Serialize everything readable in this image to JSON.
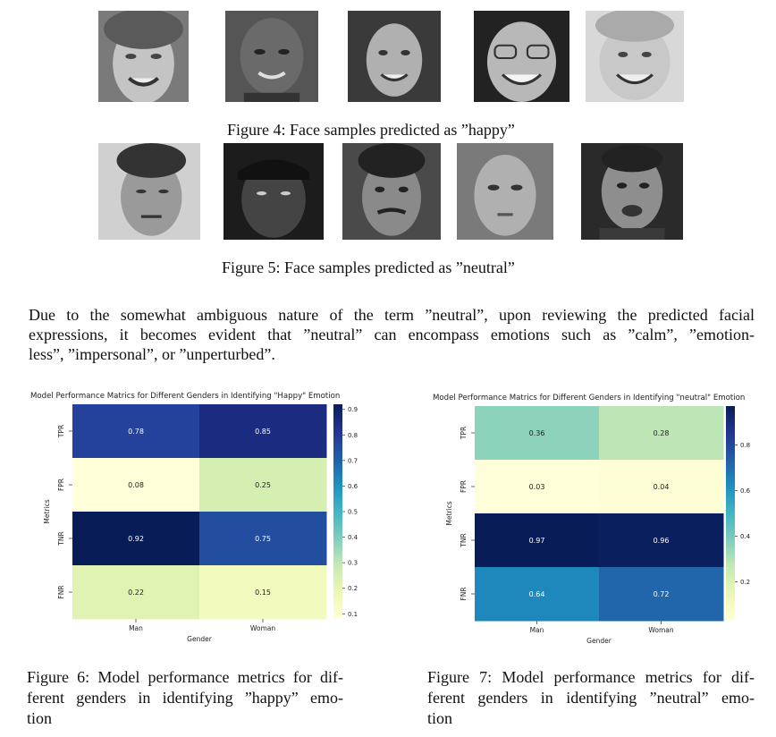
{
  "figure4": {
    "caption": "Figure 4: Face samples predicted as ”happy”",
    "faces": [
      "face-1",
      "face-2",
      "face-3",
      "face-4",
      "face-5"
    ]
  },
  "figure5": {
    "caption": "Figure 5: Face samples predicted as ”neutral”",
    "faces": [
      "face-1",
      "face-2",
      "face-3",
      "face-4",
      "face-5"
    ]
  },
  "paragraph": {
    "line1": "Due to the somewhat ambiguous nature of the term ”neutral”, upon reviewing the predicted facial",
    "line2": "expressions, it becomes evident that ”neutral” can encompass emotions such as ”calm”, ”emotion-",
    "line3": "less”, ”impersonal”, or ”unperturbed”."
  },
  "figure6": {
    "caption_line1": "Figure 6: Model performance metrics for dif-",
    "caption_line2": "ferent genders in identifying ”happy” emo-",
    "caption_line3": "tion"
  },
  "figure7": {
    "caption_line1": "Figure 7: Model performance metrics for dif-",
    "caption_line2": "ferent genders in identifying ”neutral” emo-",
    "caption_line3": "tion"
  },
  "chart_data": [
    {
      "type": "heatmap",
      "title": "Model Performance Matrics for Different Genders in Identifying \"Happy\" Emotion",
      "xlabel": "Gender",
      "ylabel": "Metrics",
      "x_categories": [
        "Man",
        "Woman"
      ],
      "y_categories": [
        "TPR",
        "FPR",
        "TNR",
        "FNR"
      ],
      "values": [
        [
          0.78,
          0.85
        ],
        [
          0.08,
          0.25
        ],
        [
          0.92,
          0.75
        ],
        [
          0.22,
          0.15
        ]
      ],
      "colormap": "YlGnBu",
      "colorbar_range": [
        0.08,
        0.92
      ],
      "colorbar_ticks": [
        0.1,
        0.2,
        0.3,
        0.4,
        0.5,
        0.6,
        0.7,
        0.8,
        0.9
      ]
    },
    {
      "type": "heatmap",
      "title": "Model Performance Matrics for Different Genders in Identifying \"neutral\" Emotion",
      "xlabel": "Gender",
      "ylabel": "Metrics",
      "x_categories": [
        "Man",
        "Woman"
      ],
      "y_categories": [
        "TPR",
        "FPR",
        "TNR",
        "FNR"
      ],
      "values": [
        [
          0.36,
          0.28
        ],
        [
          0.03,
          0.04
        ],
        [
          0.97,
          0.96
        ],
        [
          0.64,
          0.72
        ]
      ],
      "colormap": "YlGnBu",
      "colorbar_range": [
        0.03,
        0.97
      ],
      "colorbar_ticks": [
        0.2,
        0.4,
        0.6,
        0.8
      ]
    }
  ]
}
